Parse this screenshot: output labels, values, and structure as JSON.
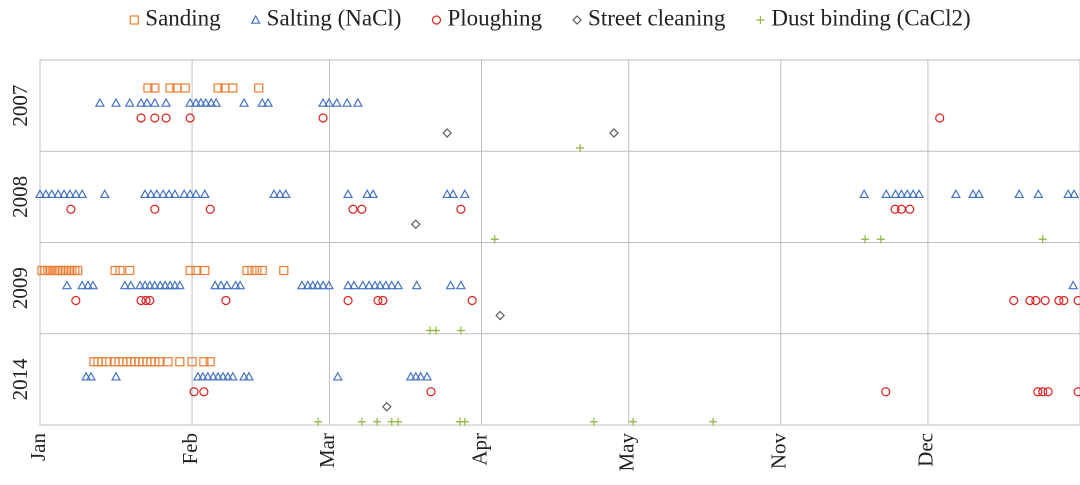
{
  "chart_data": {
    "type": "scatter",
    "legend": "top",
    "grid": true,
    "xlim": [
      0,
      212
    ],
    "xticks": [
      {
        "value": 0,
        "label": "Jan"
      },
      {
        "value": 31,
        "label": "Feb"
      },
      {
        "value": 59,
        "label": "Mar"
      },
      {
        "value": 90,
        "label": "Apr"
      },
      {
        "value": 120,
        "label": "May"
      },
      {
        "value": 151,
        "label": "Nov"
      },
      {
        "value": 181,
        "label": "Dec"
      }
    ],
    "categories": [
      "2007",
      "2008",
      "2009",
      "2014"
    ],
    "series": [
      {
        "name": "Sanding",
        "color": "#ed7d31",
        "marker": "square",
        "x": [
          22.0,
          23.4,
          26.5,
          27.9,
          29.6,
          36.3,
          37.7,
          39.3,
          44.6,
          0.4,
          1.0,
          1.6,
          2.2,
          2.9,
          3.5,
          4.1,
          4.7,
          5.3,
          5.9,
          6.5,
          7.1,
          7.7,
          15.3,
          16.3,
          18.3,
          30.6,
          31.8,
          33.6,
          42.2,
          43.2,
          44.2,
          45.3,
          49.7,
          11.0,
          11.8,
          12.6,
          13.5,
          15.3,
          16.1,
          16.9,
          17.7,
          18.5,
          19.3,
          20.2,
          21.0,
          21.8,
          22.6,
          23.4,
          24.3,
          26.1,
          28.5,
          31.0,
          33.4,
          34.7
        ],
        "y": [
          "2007",
          "2007",
          "2007",
          "2007",
          "2007",
          "2007",
          "2007",
          "2007",
          "2007",
          "2009",
          "2009",
          "2009",
          "2009",
          "2009",
          "2009",
          "2009",
          "2009",
          "2009",
          "2009",
          "2009",
          "2009",
          "2009",
          "2009",
          "2009",
          "2009",
          "2009",
          "2009",
          "2009",
          "2009",
          "2009",
          "2009",
          "2009",
          "2009",
          "2014",
          "2014",
          "2014",
          "2014",
          "2014",
          "2014",
          "2014",
          "2014",
          "2014",
          "2014",
          "2014",
          "2014",
          "2014",
          "2014",
          "2014",
          "2014",
          "2014",
          "2014",
          "2014",
          "2014",
          "2014"
        ]
      },
      {
        "name": "Salting (NaCl)",
        "color": "#4472c4",
        "marker": "triangle",
        "x": [
          12.2,
          15.5,
          18.3,
          20.6,
          21.8,
          23.4,
          25.7,
          30.6,
          31.8,
          32.8,
          33.8,
          34.9,
          35.9,
          41.6,
          45.3,
          46.5,
          57.7,
          58.9,
          60.5,
          62.6,
          64.8,
          0,
          1.2,
          2.4,
          3.7,
          4.9,
          6.1,
          7.3,
          8.6,
          13.2,
          21.4,
          22.6,
          23.8,
          25.1,
          26.3,
          27.5,
          29.4,
          30.6,
          31.8,
          33.6,
          47.7,
          48.9,
          50.1,
          62.8,
          66.7,
          67.9,
          83.0,
          84.2,
          86.6,
          168.0,
          172.5,
          174.4,
          175.6,
          176.8,
          178.0,
          179.2,
          186.7,
          190.2,
          191.4,
          199.6,
          203.5,
          209.6,
          210.8,
          5.5,
          8.6,
          9.8,
          10.8,
          17.3,
          18.5,
          20.4,
          21.4,
          22.4,
          23.4,
          24.5,
          25.5,
          26.5,
          27.5,
          28.5,
          35.7,
          36.9,
          38.1,
          39.9,
          40.8,
          53.4,
          54.6,
          55.6,
          56.6,
          57.7,
          58.9,
          62.8,
          64.0,
          65.8,
          67.1,
          68.3,
          69.3,
          70.5,
          71.7,
          73.0,
          76.8,
          83.7,
          85.8,
          210.6,
          9.4,
          10.4,
          15.5,
          32.2,
          33.2,
          34.2,
          35.3,
          36.3,
          37.3,
          38.3,
          39.3,
          41.6,
          42.6,
          60.7,
          75.6,
          76.6,
          77.6,
          78.9
        ],
        "y": [
          "2007",
          "2007",
          "2007",
          "2007",
          "2007",
          "2007",
          "2007",
          "2007",
          "2007",
          "2007",
          "2007",
          "2007",
          "2007",
          "2007",
          "2007",
          "2007",
          "2007",
          "2007",
          "2007",
          "2007",
          "2007",
          "2008",
          "2008",
          "2008",
          "2008",
          "2008",
          "2008",
          "2008",
          "2008",
          "2008",
          "2008",
          "2008",
          "2008",
          "2008",
          "2008",
          "2008",
          "2008",
          "2008",
          "2008",
          "2008",
          "2008",
          "2008",
          "2008",
          "2008",
          "2008",
          "2008",
          "2008",
          "2008",
          "2008",
          "2008",
          "2008",
          "2008",
          "2008",
          "2008",
          "2008",
          "2008",
          "2008",
          "2008",
          "2008",
          "2008",
          "2008",
          "2008",
          "2008",
          "2009",
          "2009",
          "2009",
          "2009",
          "2009",
          "2009",
          "2009",
          "2009",
          "2009",
          "2009",
          "2009",
          "2009",
          "2009",
          "2009",
          "2009",
          "2009",
          "2009",
          "2009",
          "2009",
          "2009",
          "2009",
          "2009",
          "2009",
          "2009",
          "2009",
          "2009",
          "2009",
          "2009",
          "2009",
          "2009",
          "2009",
          "2009",
          "2009",
          "2009",
          "2009",
          "2009",
          "2009",
          "2009",
          "2009",
          "2014",
          "2014",
          "2014",
          "2014",
          "2014",
          "2014",
          "2014",
          "2014",
          "2014",
          "2014",
          "2014",
          "2014",
          "2014",
          "2014",
          "2014",
          "2014",
          "2014",
          "2014"
        ]
      },
      {
        "name": "Ploughing",
        "color": "#e02020",
        "marker": "circle",
        "x": [
          20.6,
          23.4,
          25.7,
          30.6,
          57.7,
          183.4,
          6.3,
          23.4,
          34.7,
          63.8,
          65.6,
          85.8,
          174.3,
          175.6,
          177.3,
          7.3,
          20.6,
          21.6,
          22.4,
          37.9,
          62.8,
          68.9,
          69.9,
          88.1,
          198.5,
          201.8,
          203.0,
          204.9,
          207.7,
          208.7,
          211.6,
          31.4,
          33.4,
          79.7,
          172.4,
          203.4,
          204.4,
          205.5,
          211.6
        ],
        "y": [
          "2007",
          "2007",
          "2007",
          "2007",
          "2007",
          "2007",
          "2008",
          "2008",
          "2008",
          "2008",
          "2008",
          "2008",
          "2008",
          "2008",
          "2008",
          "2009",
          "2009",
          "2009",
          "2009",
          "2009",
          "2009",
          "2009",
          "2009",
          "2009",
          "2009",
          "2009",
          "2009",
          "2009",
          "2009",
          "2009",
          "2009",
          "2014",
          "2014",
          "2014",
          "2014",
          "2014",
          "2014",
          "2014",
          "2014"
        ]
      },
      {
        "name": "Street cleaning",
        "color": "#595959",
        "marker": "diamond",
        "x": [
          83.0,
          117.0,
          76.6,
          93.8,
          70.7
        ],
        "y": [
          "2007",
          "2007",
          "2008",
          "2009",
          "2014"
        ]
      },
      {
        "name": "Dust binding (CaCl2)",
        "color": "#8db53c",
        "marker": "plus",
        "x": [
          110.1,
          92.7,
          168.2,
          171.4,
          204.4,
          79.5,
          80.7,
          85.8,
          56.7,
          65.6,
          68.7,
          71.7,
          73.0,
          85.6,
          86.6,
          112.9,
          120.9,
          137.2
        ],
        "y": [
          "2007",
          "2008",
          "2008",
          "2008",
          "2008",
          "2009",
          "2009",
          "2009",
          "2014",
          "2014",
          "2014",
          "2014",
          "2014",
          "2014",
          "2014",
          "2014",
          "2014",
          "2014"
        ]
      }
    ]
  }
}
